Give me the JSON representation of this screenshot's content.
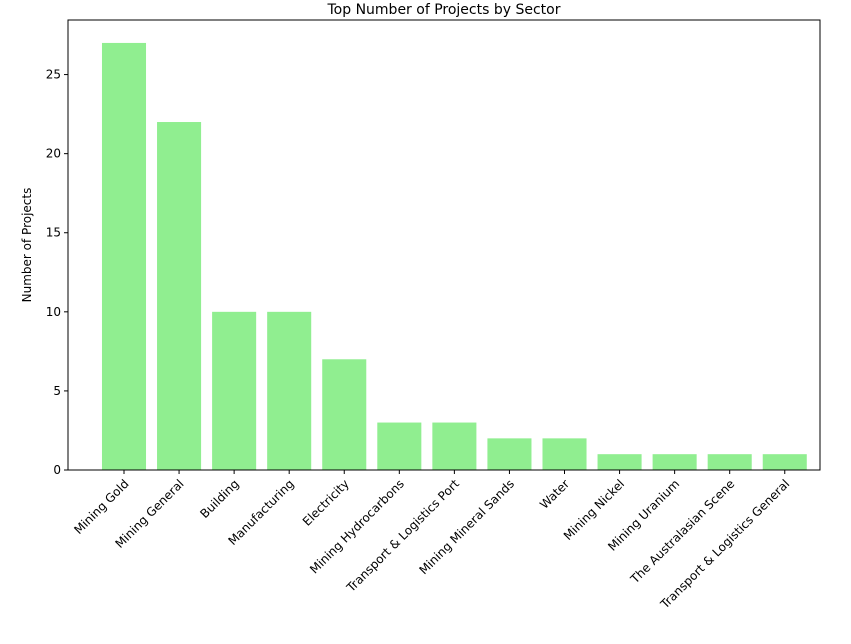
{
  "chart_data": {
    "type": "bar",
    "title": "Top Number of Projects by Sector",
    "xlabel": "",
    "ylabel": "Number of Projects",
    "categories": [
      "Mining Gold",
      "Mining General",
      "Building",
      "Manufacturing",
      "Electricity",
      "Mining Hydrocarbons",
      "Transport & Logistics Port",
      "Mining Mineral Sands",
      "Water",
      "Mining Nickel",
      "Mining Uranium",
      "The Australasian Scene",
      "Transport & Logistics General"
    ],
    "values": [
      27,
      22,
      10,
      10,
      7,
      3,
      3,
      2,
      2,
      1,
      1,
      1,
      1
    ],
    "ylim": [
      0,
      28.45
    ],
    "yticks": [
      0,
      5,
      10,
      15,
      20,
      25
    ],
    "bar_color": "#90ee90",
    "grid": false,
    "legend": "none"
  }
}
